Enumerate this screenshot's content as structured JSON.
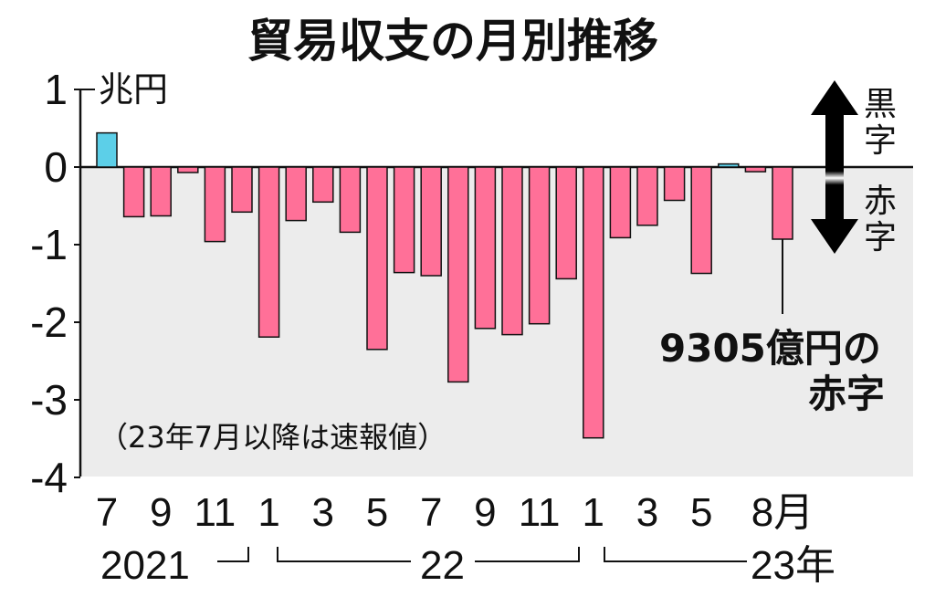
{
  "chart_data": {
    "type": "bar",
    "title": "貿易収支の月別推移",
    "unit_label": "兆円",
    "ylim": [
      -4,
      1
    ],
    "yticks": [
      "1",
      "0",
      "-1",
      "-2",
      "-3",
      "-4"
    ],
    "x_tick_labels": [
      "7",
      "9",
      "11",
      "1",
      "3",
      "5",
      "7",
      "9",
      "11",
      "1",
      "3",
      "5",
      "8月"
    ],
    "years": [
      "2021",
      "22",
      "23年"
    ],
    "categories": [
      "2021-07",
      "2021-08",
      "2021-09",
      "2021-10",
      "2021-11",
      "2021-12",
      "2022-01",
      "2022-02",
      "2022-03",
      "2022-04",
      "2022-05",
      "2022-06",
      "2022-07",
      "2022-08",
      "2022-09",
      "2022-10",
      "2022-11",
      "2022-12",
      "2023-01",
      "2023-02",
      "2023-03",
      "2023-04",
      "2023-05",
      "2023-06",
      "2023-07",
      "2023-08"
    ],
    "values": [
      0.44,
      -0.64,
      -0.63,
      -0.07,
      -0.96,
      -0.58,
      -2.19,
      -0.69,
      -0.45,
      -0.84,
      -2.35,
      -1.36,
      -1.4,
      -2.77,
      -2.08,
      -2.16,
      -2.02,
      -1.44,
      -3.49,
      -0.91,
      -0.75,
      -0.43,
      -1.37,
      0.04,
      -0.06,
      -0.93
    ],
    "surplus_label": "黒字",
    "deficit_label": "赤字",
    "note": "（23年7月以降は速報値）",
    "annotation_value": "9305億円の",
    "annotation_suffix": "赤字",
    "colors": {
      "surplus": "#5ccfe8",
      "deficit": "#ff7098",
      "background": "#ececec"
    }
  }
}
